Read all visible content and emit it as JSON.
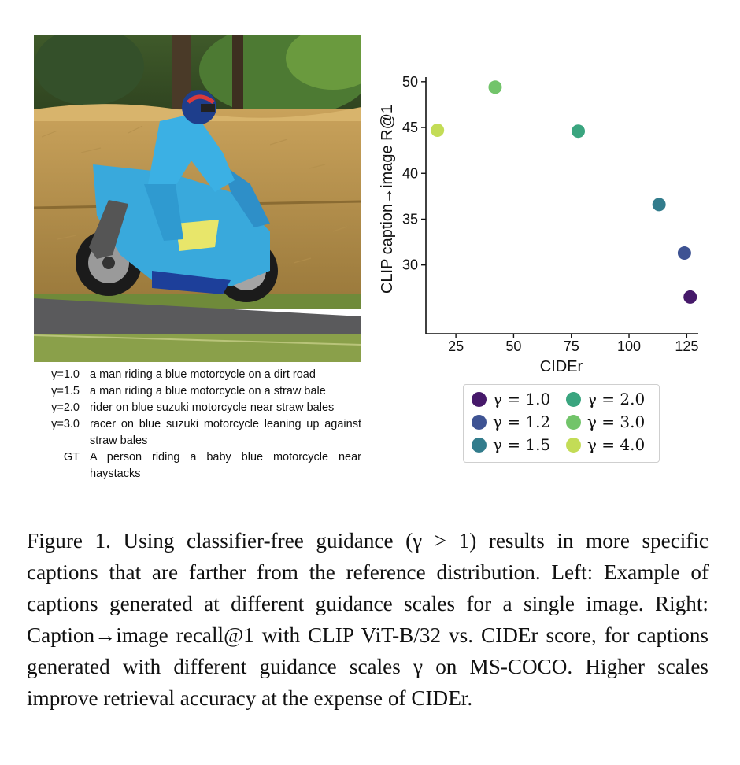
{
  "captions": [
    {
      "label": "γ=1.0",
      "text": "a man riding a blue motorcycle on a dirt road"
    },
    {
      "label": "γ=1.5",
      "text": "a man riding a blue motorcycle on a straw bale"
    },
    {
      "label": "γ=2.0",
      "text": "rider on blue suzuki motorcycle near straw bales"
    },
    {
      "label": "γ=3.0",
      "text": "racer on blue suzuki motorcycle leaning up against straw bales"
    },
    {
      "label": "GT",
      "text": "A person riding a baby blue motorcycle near haystacks"
    }
  ],
  "chart_data": {
    "type": "scatter",
    "xlabel": "CIDEr",
    "ylabel": "CLIP caption→image R@1",
    "xlim": [
      12,
      130
    ],
    "ylim": [
      22.5,
      50.5
    ],
    "xticks": [
      25,
      50,
      75,
      100,
      125
    ],
    "yticks": [
      30,
      35,
      40,
      45,
      50
    ],
    "grid": false,
    "legend_position": "below",
    "series": [
      {
        "name": "γ = 1.0",
        "color": "#46196a",
        "x": [
          126.5
        ],
        "y": [
          26.5
        ]
      },
      {
        "name": "γ = 1.2",
        "color": "#3e5393",
        "x": [
          124.0
        ],
        "y": [
          31.3
        ]
      },
      {
        "name": "γ = 1.5",
        "color": "#327c8c",
        "x": [
          113.0
        ],
        "y": [
          36.6
        ]
      },
      {
        "name": "γ = 2.0",
        "color": "#3aa57f",
        "x": [
          78.0
        ],
        "y": [
          44.6
        ]
      },
      {
        "name": "γ = 3.0",
        "color": "#72c46a",
        "x": [
          42.0
        ],
        "y": [
          49.4
        ]
      },
      {
        "name": "γ = 4.0",
        "color": "#c3dc56",
        "x": [
          17.0
        ],
        "y": [
          44.7
        ]
      }
    ]
  },
  "figure_caption": "Figure 1. Using classifier-free guidance (γ > 1) results in more specific captions that are farther from the reference distribution. Left: Example of captions generated at different guidance scales for a single image. Right: Caption→image recall@1 with CLIP ViT-B/32 vs. CIDEr score, for captions generated with different guidance scales γ on MS-COCO. Higher scales improve retrieval accuracy at the expense of CIDEr."
}
